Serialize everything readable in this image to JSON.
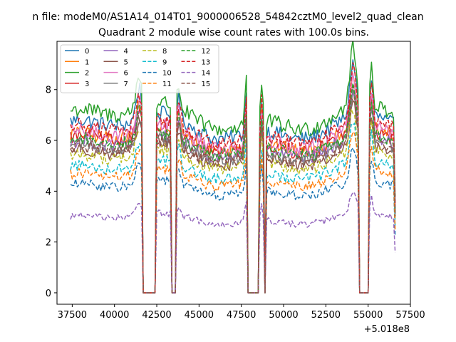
{
  "suptitle": "n file: modeM0/AS1A14_014T01_9000006528_54842cztM0_level2_quad_clean",
  "chart_data": {
    "type": "line",
    "title": "Quadrant 2 module wise count rates with 100.0s bins.",
    "xlabel": "",
    "ylabel": "",
    "x_offset_label": "+5.018e8",
    "xlim": [
      36600,
      57500
    ],
    "ylim": [
      -0.45,
      9.9
    ],
    "x_ticks": [
      37500,
      40000,
      42500,
      45000,
      47500,
      50000,
      52500,
      55000,
      57500
    ],
    "x_tick_labels": [
      "37500",
      "40000",
      "42500",
      "45000",
      "47500",
      "50000",
      "52500",
      "55000",
      "57500"
    ],
    "y_ticks": [
      0,
      2,
      4,
      6,
      8
    ],
    "y_tick_labels": [
      "0",
      "2",
      "4",
      "6",
      "8"
    ],
    "legend": {
      "placement": "upper-left",
      "columns": 4
    },
    "gaps": [
      {
        "start": 41650,
        "end": 42450
      },
      {
        "start": 43400,
        "end": 43650
      },
      {
        "start": 47900,
        "end": 48550
      },
      {
        "start": 48850,
        "end": 48950
      },
      {
        "start": 54500,
        "end": 55050
      }
    ],
    "x_start": 37400,
    "x_end": 56600,
    "x_step": 100,
    "series": [
      {
        "name": "0",
        "baseline": 6.5,
        "color": "#1f77b4",
        "dash": "solid"
      },
      {
        "name": "1",
        "baseline": 6.0,
        "color": "#ff7f0e",
        "dash": "solid"
      },
      {
        "name": "2",
        "baseline": 6.9,
        "color": "#2ca02c",
        "dash": "solid"
      },
      {
        "name": "3",
        "baseline": 5.9,
        "color": "#d62728",
        "dash": "solid"
      },
      {
        "name": "4",
        "baseline": 5.7,
        "color": "#9467bd",
        "dash": "solid"
      },
      {
        "name": "5",
        "baseline": 5.4,
        "color": "#8c564b",
        "dash": "solid"
      },
      {
        "name": "6",
        "baseline": 6.1,
        "color": "#e377c2",
        "dash": "solid"
      },
      {
        "name": "7",
        "baseline": 5.6,
        "color": "#7f7f7f",
        "dash": "solid"
      },
      {
        "name": "8",
        "baseline": 5.2,
        "color": "#bcbd22",
        "dash": "dashed"
      },
      {
        "name": "9",
        "baseline": 4.8,
        "color": "#17becf",
        "dash": "dashed"
      },
      {
        "name": "10",
        "baseline": 4.1,
        "color": "#1f77b4",
        "dash": "dashed"
      },
      {
        "name": "11",
        "baseline": 4.5,
        "color": "#ff7f0e",
        "dash": "dashed"
      },
      {
        "name": "12",
        "baseline": 5.8,
        "color": "#2ca02c",
        "dash": "dashed"
      },
      {
        "name": "13",
        "baseline": 6.3,
        "color": "#d62728",
        "dash": "dashed"
      },
      {
        "name": "14",
        "baseline": 2.9,
        "color": "#9467bd",
        "dash": "dashed"
      },
      {
        "name": "15",
        "baseline": 5.5,
        "color": "#8c564b",
        "dash": "dashed"
      }
    ]
  }
}
